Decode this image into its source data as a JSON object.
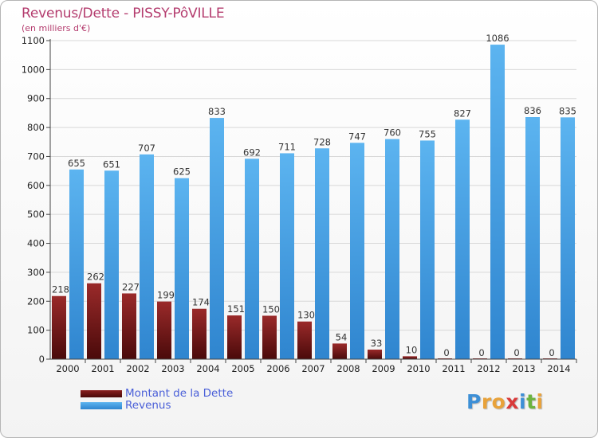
{
  "header": {
    "title": "Revenus/Dette - PISSY-PôVILLE",
    "subtitle": "(en milliers d'€)"
  },
  "legend": {
    "items": [
      {
        "label": "Montant de la Dette",
        "color": "#7a1a1a"
      },
      {
        "label": "Revenus",
        "color": "#4aa3e8"
      }
    ]
  },
  "logo": {
    "text": "Proxiti",
    "letters": [
      {
        "ch": "P",
        "color": "#3d8fd6"
      },
      {
        "ch": "r",
        "color": "#e8a23a"
      },
      {
        "ch": "o",
        "color": "#e8a23a"
      },
      {
        "ch": "x",
        "color": "#d93a3a"
      },
      {
        "ch": "i",
        "color": "#3d8fd6"
      },
      {
        "ch": "t",
        "color": "#6cb33f"
      },
      {
        "ch": "i",
        "color": "#e8a23a"
      }
    ]
  },
  "chart_data": {
    "type": "bar",
    "categories": [
      "2000",
      "2001",
      "2002",
      "2003",
      "2004",
      "2005",
      "2006",
      "2007",
      "2008",
      "2009",
      "2010",
      "2011",
      "2012",
      "2013",
      "2014"
    ],
    "series": [
      {
        "name": "Montant de la Dette",
        "color": "#7a1a1a",
        "values": [
          218,
          262,
          227,
          199,
          174,
          151,
          150,
          130,
          54,
          33,
          10,
          0,
          0,
          0,
          0
        ]
      },
      {
        "name": "Revenus",
        "color": "#4aa3e8",
        "values": [
          655,
          651,
          707,
          625,
          833,
          692,
          711,
          728,
          747,
          760,
          755,
          827,
          1086,
          836,
          835
        ]
      }
    ],
    "ylim": [
      0,
      1100
    ],
    "yticks": [
      0,
      100,
      200,
      300,
      400,
      500,
      600,
      700,
      800,
      900,
      1000,
      1100
    ],
    "grid": true,
    "data_labels": true,
    "xlabel": "",
    "ylabel": ""
  }
}
